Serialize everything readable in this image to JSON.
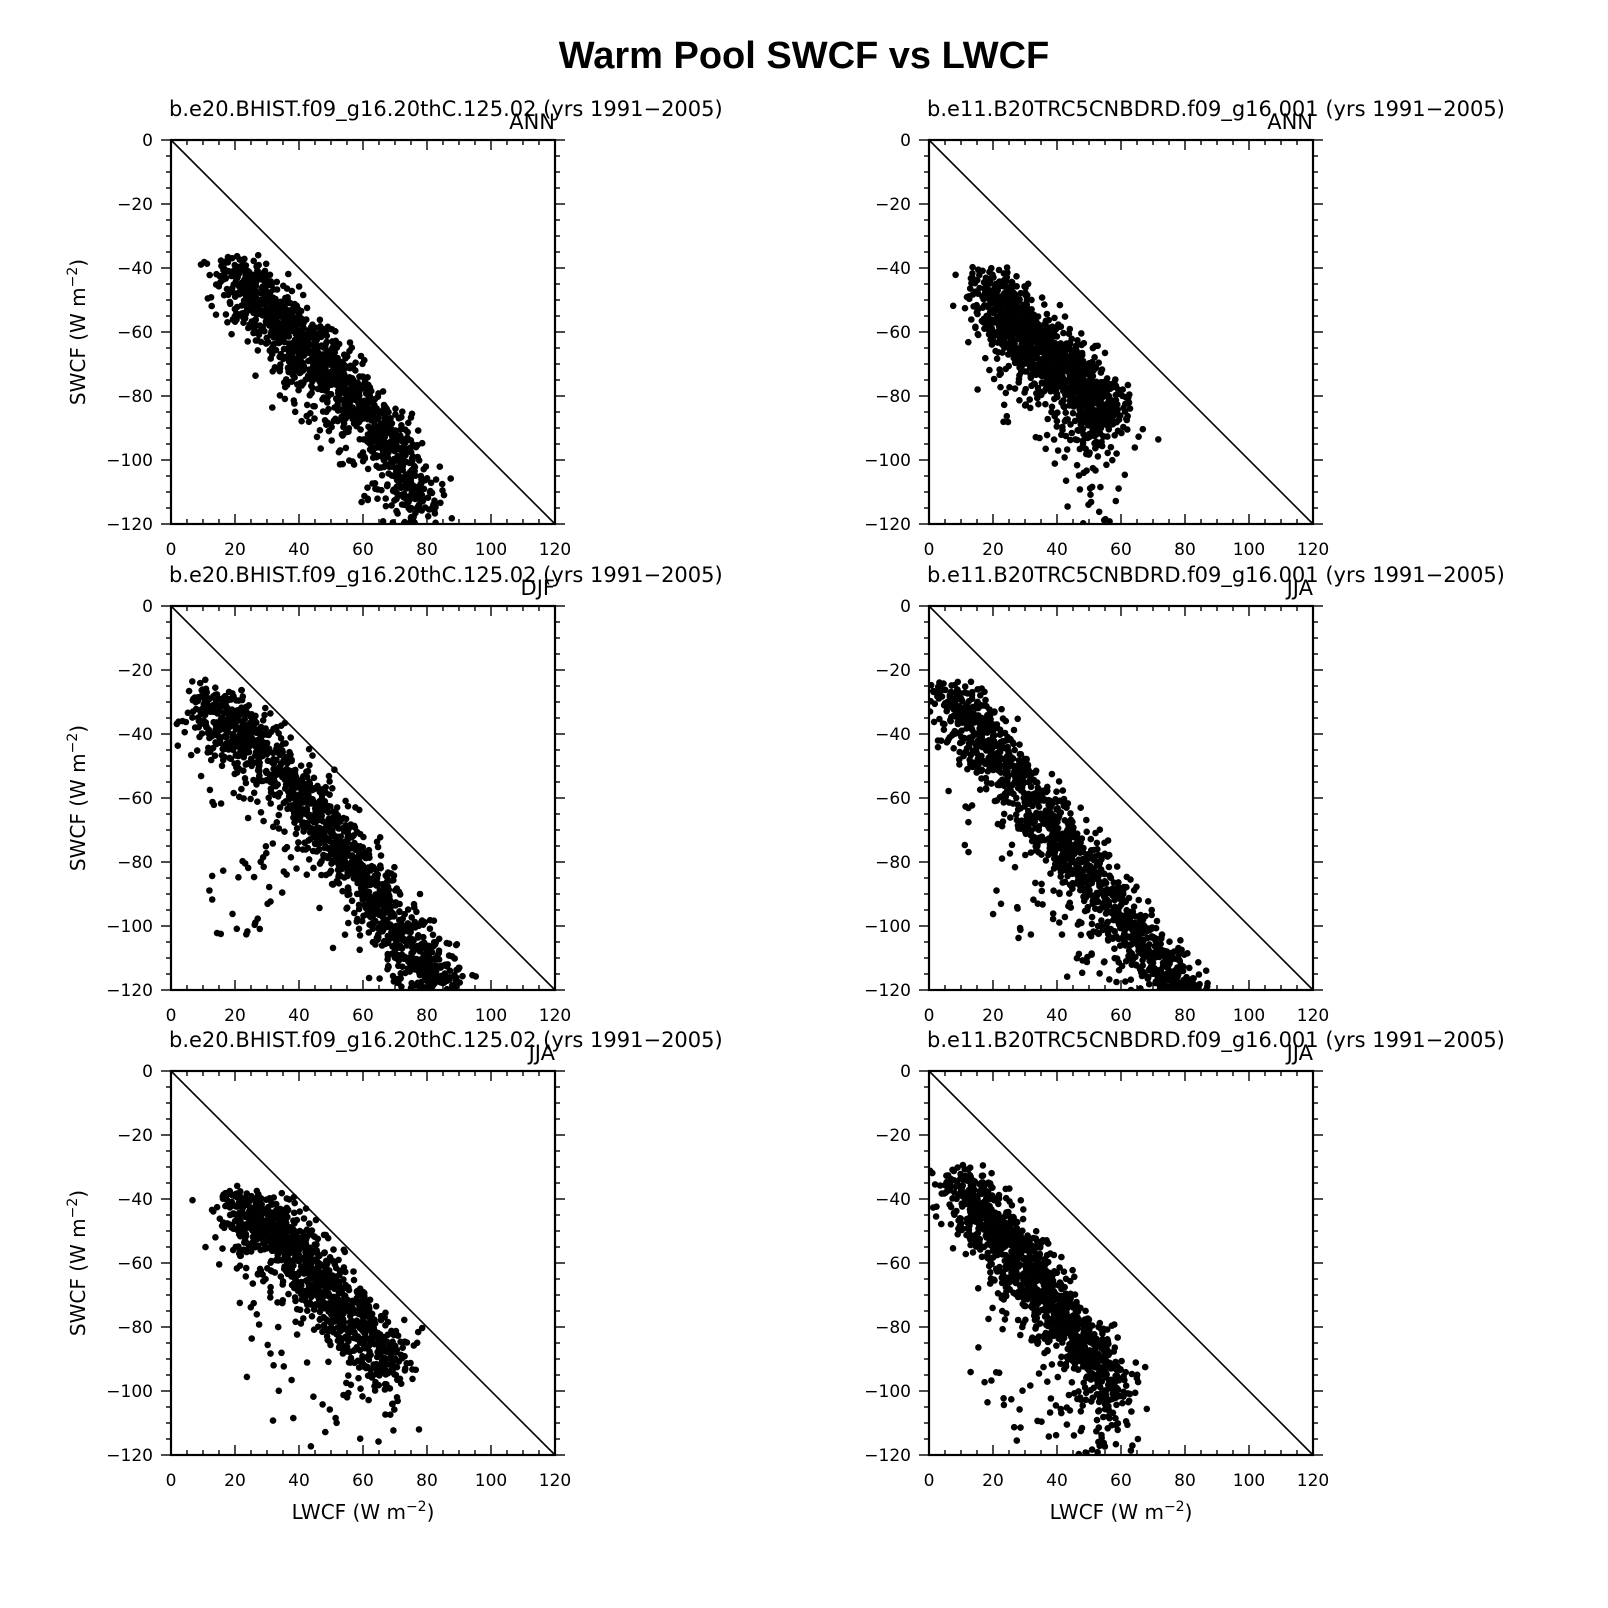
{
  "figure": {
    "title": "Warm Pool SWCF vs LWCF",
    "x_axis_label": "LWCF (W m",
    "x_axis_unit_exponent": "−2",
    "y_axis_label": "SWCF (W m",
    "y_axis_unit_exponent": "−2",
    "x_ticks": [
      "0",
      "20",
      "40",
      "60",
      "80",
      "100",
      "120"
    ],
    "y_ticks": [
      "0",
      "−20",
      "−40",
      "−60",
      "−80",
      "−100",
      "−120"
    ],
    "marker_color": "#000000"
  },
  "chart_data": [
    {
      "type": "scatter",
      "title": "b.e20.BHIST.f09_g16.20thC.125.02 (yrs 1991−2005)",
      "season": "ANN",
      "xlim": [
        0,
        120
      ],
      "ylim": [
        -120,
        0
      ],
      "xticks": [
        0,
        20,
        40,
        60,
        80,
        100,
        120
      ],
      "yticks": [
        0,
        -20,
        -40,
        -60,
        -80,
        -100,
        -120
      ],
      "reference_line": {
        "from": [
          0,
          0
        ],
        "to": [
          120,
          -120
        ]
      },
      "point_cloud": {
        "spine": [
          [
            20,
            -37
          ],
          [
            30,
            -45
          ],
          [
            40,
            -57
          ],
          [
            50,
            -67
          ],
          [
            60,
            -79
          ],
          [
            70,
            -92
          ],
          [
            78,
            -110
          ]
        ],
        "count": 1300,
        "scatter_below": [
          [
            34,
            -76
          ],
          [
            38,
            -80
          ],
          [
            44,
            -92
          ],
          [
            54,
            -102
          ],
          [
            62,
            -112
          ],
          [
            66,
            -118
          ],
          [
            72,
            -114
          ],
          [
            80,
            -119
          ],
          [
            48,
            -96
          ],
          [
            36,
            -72
          ]
        ]
      }
    },
    {
      "type": "scatter",
      "title": "b.e11.B20TRC5CNBDRD.f09_g16.001 (yrs 1991−2005)",
      "season": "ANN",
      "xlim": [
        0,
        120
      ],
      "ylim": [
        -120,
        0
      ],
      "xticks": [
        0,
        20,
        40,
        60,
        80,
        100,
        120
      ],
      "yticks": [
        0,
        -20,
        -40,
        -60,
        -80,
        -100,
        -120
      ],
      "reference_line": {
        "from": [
          0,
          0
        ],
        "to": [
          120,
          -120
        ]
      },
      "point_cloud": {
        "spine": [
          [
            18,
            -41
          ],
          [
            28,
            -52
          ],
          [
            38,
            -62
          ],
          [
            48,
            -72
          ],
          [
            55,
            -82
          ]
        ],
        "count": 1400,
        "scatter_below": [
          [
            50,
            -100
          ],
          [
            52,
            -110
          ],
          [
            54,
            -118
          ],
          [
            46,
            -105
          ],
          [
            56,
            -112
          ],
          [
            60,
            -98
          ],
          [
            44,
            -96
          ],
          [
            24,
            -87
          ],
          [
            38,
            -92
          ],
          [
            48,
            -115
          ]
        ]
      }
    },
    {
      "type": "scatter",
      "title": "b.e20.BHIST.f09_g16.20thC.125.02 (yrs 1991−2005)",
      "season": "DJF",
      "xlim": [
        0,
        120
      ],
      "ylim": [
        -120,
        0
      ],
      "xticks": [
        0,
        20,
        40,
        60,
        80,
        100,
        120
      ],
      "yticks": [
        0,
        -20,
        -40,
        -60,
        -80,
        -100,
        -120
      ],
      "reference_line": {
        "from": [
          0,
          0
        ],
        "to": [
          120,
          -120
        ]
      },
      "point_cloud": {
        "spine": [
          [
            10,
            -25
          ],
          [
            20,
            -32
          ],
          [
            30,
            -42
          ],
          [
            40,
            -55
          ],
          [
            50,
            -66
          ],
          [
            60,
            -80
          ],
          [
            70,
            -95
          ],
          [
            80,
            -108
          ],
          [
            86,
            -116
          ]
        ],
        "count": 1500,
        "scatter_below": [
          [
            14,
            -89
          ],
          [
            18,
            -100
          ],
          [
            22,
            -96
          ],
          [
            26,
            -98
          ],
          [
            30,
            -96
          ],
          [
            24,
            -84
          ],
          [
            28,
            -80
          ],
          [
            34,
            -90
          ],
          [
            36,
            -84
          ],
          [
            20,
            -80
          ]
        ]
      }
    },
    {
      "type": "scatter",
      "title": "b.e11.B20TRC5CNBDRD.f09_g16.001 (yrs 1991−2005)",
      "season": "JJA",
      "xlim": [
        0,
        120
      ],
      "ylim": [
        -120,
        0
      ],
      "xticks": [
        0,
        20,
        40,
        60,
        80,
        100,
        120
      ],
      "yticks": [
        0,
        -20,
        -40,
        -60,
        -80,
        -100,
        -120
      ],
      "reference_line": {
        "from": [
          0,
          0
        ],
        "to": [
          120,
          -120
        ]
      },
      "point_cloud": {
        "spine": [
          [
            5,
            -24
          ],
          [
            15,
            -32
          ],
          [
            25,
            -44
          ],
          [
            35,
            -58
          ],
          [
            45,
            -72
          ],
          [
            55,
            -86
          ],
          [
            65,
            -98
          ],
          [
            75,
            -110
          ],
          [
            80,
            -119
          ]
        ],
        "count": 1400,
        "scatter_below": [
          [
            20,
            -92
          ],
          [
            24,
            -96
          ],
          [
            30,
            -100
          ],
          [
            42,
            -106
          ],
          [
            46,
            -112
          ],
          [
            50,
            -116
          ],
          [
            56,
            -118
          ],
          [
            64,
            -112
          ],
          [
            34,
            -90
          ],
          [
            12,
            -76
          ]
        ]
      }
    },
    {
      "type": "scatter",
      "title": "b.e20.BHIST.f09_g16.20thC.125.02 (yrs 1991−2005)",
      "season": "JJA",
      "xlim": [
        0,
        120
      ],
      "ylim": [
        -120,
        0
      ],
      "xticks": [
        0,
        20,
        40,
        60,
        80,
        100,
        120
      ],
      "yticks": [
        0,
        -20,
        -40,
        -60,
        -80,
        -100,
        -120
      ],
      "reference_line": {
        "from": [
          0,
          0
        ],
        "to": [
          120,
          -120
        ]
      },
      "point_cloud": {
        "spine": [
          [
            20,
            -38
          ],
          [
            30,
            -42
          ],
          [
            40,
            -52
          ],
          [
            50,
            -64
          ],
          [
            60,
            -76
          ],
          [
            70,
            -86
          ]
        ],
        "count": 1100,
        "scatter_below": [
          [
            24,
            -70
          ],
          [
            28,
            -75
          ],
          [
            34,
            -96
          ],
          [
            36,
            -112
          ],
          [
            40,
            -118
          ],
          [
            46,
            -106
          ],
          [
            52,
            -110
          ],
          [
            60,
            -118
          ],
          [
            68,
            -108
          ],
          [
            76,
            -116
          ],
          [
            30,
            -96
          ],
          [
            56,
            -104
          ]
        ]
      }
    },
    {
      "type": "scatter",
      "title": "b.e11.B20TRC5CNBDRD.f09_g16.001 (yrs 1991−2005)",
      "season": "JJA",
      "xlim": [
        0,
        120
      ],
      "ylim": [
        -120,
        0
      ],
      "xticks": [
        0,
        20,
        40,
        60,
        80,
        100,
        120
      ],
      "yticks": [
        0,
        -20,
        -40,
        -60,
        -80,
        -100,
        -120
      ],
      "reference_line": {
        "from": [
          0,
          0
        ],
        "to": [
          120,
          -120
        ]
      },
      "point_cloud": {
        "spine": [
          [
            10,
            -30
          ],
          [
            20,
            -42
          ],
          [
            30,
            -55
          ],
          [
            40,
            -70
          ],
          [
            50,
            -82
          ],
          [
            58,
            -96
          ]
        ],
        "count": 1200,
        "scatter_below": [
          [
            16,
            -88
          ],
          [
            20,
            -96
          ],
          [
            22,
            -104
          ],
          [
            26,
            -100
          ],
          [
            30,
            -112
          ],
          [
            36,
            -106
          ],
          [
            40,
            -110
          ],
          [
            44,
            -116
          ],
          [
            48,
            -112
          ],
          [
            52,
            -118
          ],
          [
            56,
            -114
          ],
          [
            60,
            -116
          ],
          [
            34,
            -94
          ],
          [
            42,
            -104
          ]
        ]
      }
    }
  ]
}
